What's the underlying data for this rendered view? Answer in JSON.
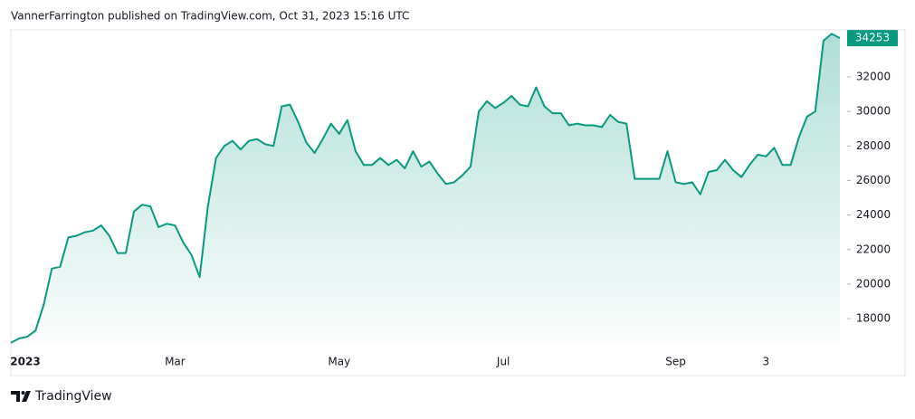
{
  "attribution": "VannerFarrington published on TradingView.com, Oct 31, 2023 15:16 UTC",
  "brand": "TradingView",
  "chart_data": {
    "type": "area",
    "categories": [
      "2023",
      null,
      null,
      null,
      null,
      null,
      null,
      null,
      null,
      null,
      null,
      null,
      null,
      null,
      null,
      null,
      null,
      null,
      null,
      null,
      "Mar",
      null,
      null,
      null,
      null,
      null,
      null,
      null,
      null,
      null,
      null,
      null,
      null,
      null,
      null,
      null,
      null,
      null,
      null,
      null,
      "May",
      null,
      null,
      null,
      null,
      null,
      null,
      null,
      null,
      null,
      null,
      null,
      null,
      null,
      null,
      null,
      null,
      null,
      null,
      null,
      "Jul",
      null,
      null,
      null,
      null,
      null,
      null,
      null,
      null,
      null,
      null,
      null,
      null,
      null,
      null,
      null,
      null,
      null,
      null,
      null,
      null,
      "Sep",
      null,
      null,
      null,
      null,
      null,
      null,
      null,
      null,
      null,
      null,
      "3",
      null,
      null,
      null,
      null,
      null,
      null,
      null,
      null,
      null
    ],
    "values": [
      16600,
      16850,
      16950,
      17300,
      18800,
      20900,
      21000,
      22700,
      22800,
      23000,
      23100,
      23400,
      22800,
      21800,
      21800,
      24200,
      24600,
      24500,
      23300,
      23500,
      23400,
      22400,
      21700,
      20400,
      24500,
      27300,
      28000,
      28300,
      27800,
      28300,
      28400,
      28100,
      28000,
      30300,
      30400,
      29400,
      28200,
      27600,
      28400,
      29300,
      28700,
      29500,
      27700,
      26900,
      26900,
      27300,
      26900,
      27200,
      26700,
      27700,
      26800,
      27100,
      26400,
      25800,
      25900,
      26300,
      26800,
      30000,
      30600,
      30200,
      30500,
      30900,
      30400,
      30300,
      31400,
      30300,
      29900,
      29900,
      29200,
      29300,
      29200,
      29200,
      29100,
      29800,
      29400,
      29300,
      26100,
      26100,
      26100,
      26100,
      27700,
      25900,
      25800,
      25900,
      25200,
      26500,
      26600,
      27200,
      26600,
      26200,
      26900,
      27500,
      27400,
      27900,
      26900,
      26900,
      28500,
      29700,
      30000,
      34100,
      34500,
      34253
    ],
    "color": "#089981",
    "ylim": [
      16640,
      34730
    ],
    "yticks": [
      18000,
      20000,
      22000,
      24000,
      26000,
      28000,
      30000,
      32000
    ]
  }
}
